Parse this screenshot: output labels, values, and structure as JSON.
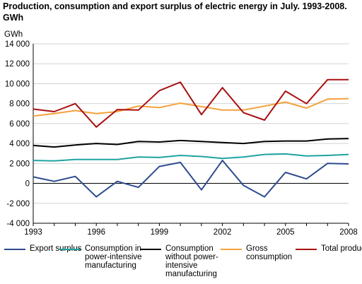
{
  "chart_data": {
    "type": "line",
    "title": "Production, consumption and export surplus of electric energy in July. 1993-2008. GWh",
    "unit": "GWh",
    "x": [
      1993,
      1994,
      1995,
      1996,
      1997,
      1998,
      1999,
      2000,
      2001,
      2002,
      2003,
      2004,
      2005,
      2006,
      2007,
      2008
    ],
    "xticks": [
      "1993",
      "1996",
      "1999",
      "2002",
      "2005",
      "2008"
    ],
    "yticks": [
      "14 000",
      "12 000",
      "10 000",
      "8 000",
      "6 000",
      "4 000",
      "2 000",
      "0",
      "-2 000",
      "-4 000"
    ],
    "ylim": [
      -4000,
      14000
    ],
    "grid": true,
    "legend_position": "bottom",
    "series": [
      {
        "name": "Export surplus",
        "color": "#2e4b8f",
        "values": [
          650,
          200,
          700,
          -1350,
          200,
          -400,
          1700,
          2100,
          -650,
          2300,
          -200,
          -1350,
          1100,
          450,
          2000,
          1950
        ]
      },
      {
        "name": "Consumption in power-intensive manufacturing",
        "color": "#1fa3a0",
        "values": [
          2300,
          2250,
          2400,
          2400,
          2400,
          2650,
          2600,
          2800,
          2700,
          2500,
          2650,
          2900,
          2950,
          2750,
          2800,
          2900
        ]
      },
      {
        "name": "Consumption without power-intensive manufacturing",
        "color": "#000000",
        "values": [
          3800,
          3650,
          3850,
          4000,
          3900,
          4200,
          4150,
          4300,
          4200,
          4100,
          4000,
          4200,
          4250,
          4250,
          4450,
          4500
        ]
      },
      {
        "name": "Gross consumption",
        "color": "#f5a13b",
        "values": [
          6750,
          7000,
          7300,
          7000,
          7200,
          7750,
          7600,
          8050,
          7700,
          7350,
          7350,
          7750,
          8150,
          7550,
          8450,
          8500
        ]
      },
      {
        "name": "Total production",
        "color": "#a81010",
        "values": [
          7450,
          7200,
          8000,
          5650,
          7400,
          7350,
          9300,
          10150,
          6900,
          9600,
          7100,
          6350,
          9250,
          8000,
          10400,
          10400
        ]
      }
    ],
    "legend": [
      {
        "label": "Export surplus"
      },
      {
        "label": "Consumption in power-intensive manufacturing"
      },
      {
        "label": "Consumption without power-intensive manufacturing"
      },
      {
        "label": "Gross consumption"
      },
      {
        "label": "Total production"
      }
    ]
  }
}
